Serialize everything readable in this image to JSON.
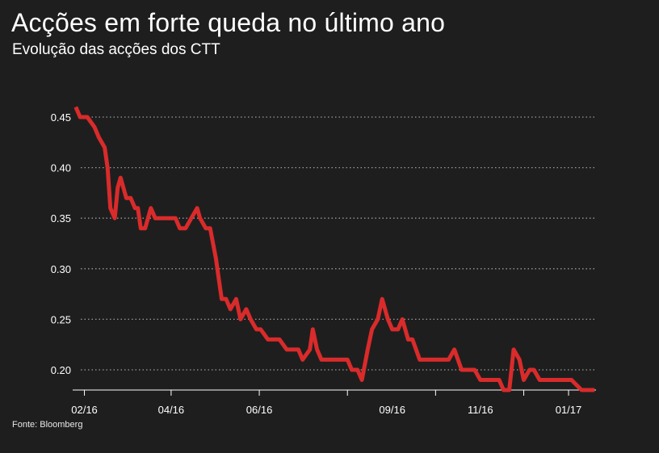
{
  "title": "Acções em forte queda no último ano",
  "subtitle": "Evolução das acções dos CTT",
  "source": "Fonte: Bloomberg",
  "colors": {
    "background": "#1f1e1e",
    "line": "#d92b2b",
    "grid": "#9a9a9a",
    "text": "#ffffff"
  },
  "chart_data": {
    "type": "line",
    "title": "Acções em forte queda no último ano",
    "subtitle": "Evolução das acções dos CTT",
    "xlabel": "",
    "ylabel": "",
    "ylim": [
      0.18,
      0.47
    ],
    "x_range": [
      "2016-01-25",
      "2017-01-20"
    ],
    "yticks": [
      0.2,
      0.25,
      0.3,
      0.35,
      0.4,
      0.45
    ],
    "ytick_labels": [
      "0.20",
      "0.25",
      "0.30",
      "0.35",
      "0.40",
      "0.45"
    ],
    "xticks": [
      "2016-02-01",
      "2016-04-01",
      "2016-06-01",
      "2016-08-01",
      "2016-10-01",
      "2016-12-01",
      "2017-01-01"
    ],
    "xtick_labels": [
      "02/16",
      "04/16",
      "06/16",
      "09/16",
      "11/16",
      "01/17"
    ],
    "xtick_label_dates": [
      "2016-02-01",
      "2016-04-01",
      "2016-06-01",
      "2016-09-01",
      "2016-11-01",
      "2017-01-01"
    ],
    "grid": "horizontal dotted",
    "legend": "none",
    "series": [
      {
        "x": [
          "2016-01-26",
          "2016-01-29",
          "2016-02-03",
          "2016-02-08",
          "2016-02-11",
          "2016-02-15",
          "2016-02-17",
          "2016-02-19",
          "2016-02-22",
          "2016-02-24",
          "2016-02-26",
          "2016-03-01",
          "2016-03-04",
          "2016-03-07",
          "2016-03-09",
          "2016-03-11",
          "2016-03-14",
          "2016-03-16",
          "2016-03-18",
          "2016-03-21",
          "2016-03-25",
          "2016-03-30",
          "2016-04-04",
          "2016-04-07",
          "2016-04-11",
          "2016-04-15",
          "2016-04-19",
          "2016-04-21",
          "2016-04-25",
          "2016-04-28",
          "2016-05-02",
          "2016-05-04",
          "2016-05-06",
          "2016-05-09",
          "2016-05-12",
          "2016-05-16",
          "2016-05-19",
          "2016-05-23",
          "2016-05-26",
          "2016-05-30",
          "2016-06-02",
          "2016-06-07",
          "2016-06-10",
          "2016-06-15",
          "2016-06-20",
          "2016-06-24",
          "2016-06-28",
          "2016-07-01",
          "2016-07-06",
          "2016-07-08",
          "2016-07-11",
          "2016-07-14",
          "2016-07-20",
          "2016-07-26",
          "2016-08-01",
          "2016-08-04",
          "2016-08-08",
          "2016-08-11",
          "2016-08-15",
          "2016-08-18",
          "2016-08-22",
          "2016-08-25",
          "2016-08-29",
          "2016-09-01",
          "2016-09-05",
          "2016-09-08",
          "2016-09-12",
          "2016-09-15",
          "2016-09-20",
          "2016-09-26",
          "2016-10-03",
          "2016-10-10",
          "2016-10-14",
          "2016-10-19",
          "2016-10-24",
          "2016-10-28",
          "2016-11-01",
          "2016-11-07",
          "2016-11-10",
          "2016-11-14",
          "2016-11-17",
          "2016-11-21",
          "2016-11-24",
          "2016-11-28",
          "2016-12-01",
          "2016-12-05",
          "2016-12-08",
          "2016-12-12",
          "2016-12-19",
          "2016-12-27",
          "2017-01-03",
          "2017-01-10",
          "2017-01-19"
        ],
        "y": [
          0.46,
          0.45,
          0.45,
          0.44,
          0.43,
          0.42,
          0.4,
          0.36,
          0.35,
          0.38,
          0.39,
          0.37,
          0.37,
          0.36,
          0.36,
          0.34,
          0.34,
          0.35,
          0.36,
          0.35,
          0.35,
          0.35,
          0.35,
          0.34,
          0.34,
          0.35,
          0.36,
          0.35,
          0.34,
          0.34,
          0.31,
          0.29,
          0.27,
          0.27,
          0.26,
          0.27,
          0.25,
          0.26,
          0.25,
          0.24,
          0.24,
          0.23,
          0.23,
          0.23,
          0.22,
          0.22,
          0.22,
          0.21,
          0.22,
          0.24,
          0.22,
          0.21,
          0.21,
          0.21,
          0.21,
          0.2,
          0.2,
          0.19,
          0.22,
          0.24,
          0.25,
          0.27,
          0.25,
          0.24,
          0.24,
          0.25,
          0.23,
          0.23,
          0.21,
          0.21,
          0.21,
          0.21,
          0.22,
          0.2,
          0.2,
          0.2,
          0.19,
          0.19,
          0.19,
          0.19,
          0.18,
          0.18,
          0.22,
          0.21,
          0.19,
          0.2,
          0.2,
          0.19,
          0.19,
          0.19,
          0.19,
          0.18,
          0.18
        ]
      }
    ]
  }
}
